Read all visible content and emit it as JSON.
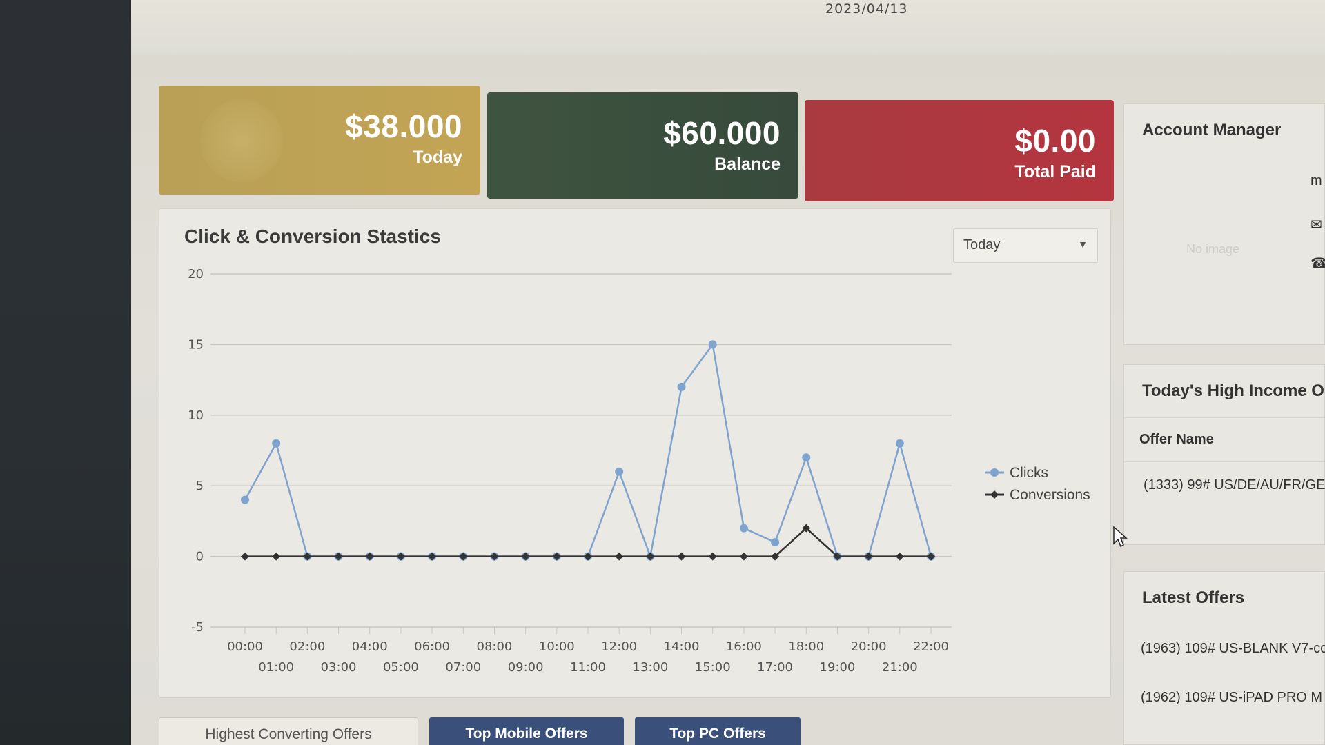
{
  "header": {
    "date": "2023/04/13"
  },
  "stats": {
    "today": {
      "amount": "$38.000",
      "label": "Today"
    },
    "balance": {
      "amount": "$60.000",
      "label": "Balance"
    },
    "paid": {
      "amount": "$0.00",
      "label": "Total Paid"
    }
  },
  "chart_panel": {
    "title": "Click & Conversion Stastics",
    "period": "Today"
  },
  "chart_data": {
    "type": "line",
    "x": [
      "00:00",
      "01:00",
      "02:00",
      "03:00",
      "04:00",
      "05:00",
      "06:00",
      "07:00",
      "08:00",
      "09:00",
      "10:00",
      "11:00",
      "12:00",
      "13:00",
      "14:00",
      "15:00",
      "16:00",
      "17:00",
      "18:00",
      "19:00",
      "20:00",
      "21:00",
      "22:00"
    ],
    "series": [
      {
        "name": "Clicks",
        "values": [
          4,
          8,
          0,
          0,
          0,
          0,
          0,
          0,
          0,
          0,
          0,
          0,
          6,
          0,
          12,
          15,
          2,
          1,
          7,
          0,
          0,
          8,
          0
        ],
        "color": "#7fa3cf"
      },
      {
        "name": "Conversions",
        "values": [
          0,
          0,
          0,
          0,
          0,
          0,
          0,
          0,
          0,
          0,
          0,
          0,
          0,
          0,
          0,
          0,
          0,
          0,
          2,
          0,
          0,
          0,
          0
        ],
        "color": "#333333"
      }
    ],
    "ylim": [
      -5,
      20
    ],
    "yticks": [
      20,
      15,
      10,
      5,
      0,
      -5
    ],
    "grid": true,
    "legend": "right"
  },
  "account_manager": {
    "title": "Account Manager",
    "no_image": "No image",
    "initial": "m"
  },
  "high_income": {
    "title": "Today's High Income O",
    "column": "Offer Name",
    "rows": [
      "(1333) 99# US/DE/AU/FR/GE"
    ]
  },
  "latest_offers": {
    "title": "Latest Offers",
    "rows": [
      "(1963) 109# US-BLANK V7-cc",
      "(1962) 109# US-iPAD PRO M"
    ]
  },
  "tabs": {
    "highest": "Highest Converting Offers",
    "mobile": "Top Mobile Offers",
    "pc": "Top PC Offers"
  }
}
